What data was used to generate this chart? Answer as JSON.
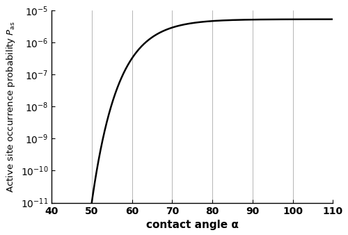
{
  "xlim": [
    40,
    110
  ],
  "ylim": [
    1e-11,
    1e-05
  ],
  "xticks": [
    40,
    50,
    60,
    70,
    80,
    90,
    100,
    110
  ],
  "yticks": [
    1e-11,
    1e-10,
    1e-09,
    1e-08,
    1e-07,
    1e-06,
    1e-05
  ],
  "xlabel": "contact angle α",
  "ylabel": "Active site occurrence probability $P_{\\mathrm{as}}$",
  "grid_x": [
    50,
    60,
    70,
    80,
    90,
    100
  ],
  "line_color": "#000000",
  "line_width": 1.8,
  "background_color": "#ffffff",
  "curve_a": -5.28,
  "curve_b": 5.72,
  "curve_c": 0.32,
  "curve_x0": 50.0,
  "fig_width": 5.0,
  "fig_height": 3.38,
  "dpi": 100
}
